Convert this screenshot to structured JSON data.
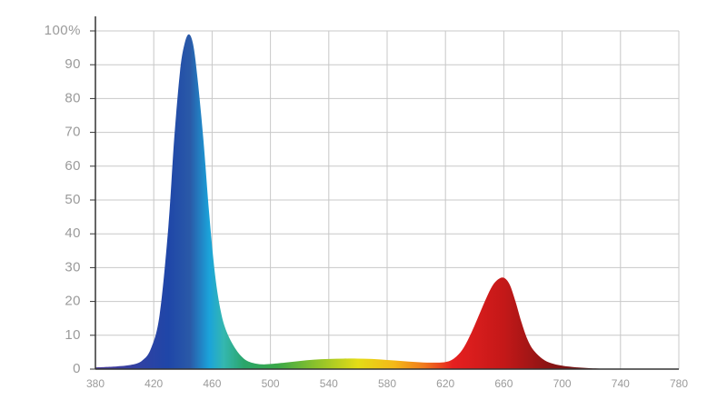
{
  "chart_data": {
    "type": "area",
    "title": "",
    "xlabel": "",
    "ylabel": "",
    "xlim": [
      380,
      780
    ],
    "ylim": [
      0,
      100
    ],
    "grid": true,
    "x_ticks": [
      380,
      420,
      460,
      500,
      540,
      580,
      620,
      660,
      700,
      740,
      780
    ],
    "x_tick_labels": [
      "380",
      "420",
      "460",
      "500",
      "540",
      "580",
      "620",
      "660",
      "700",
      "740",
      "780"
    ],
    "y_ticks": [
      0,
      10,
      20,
      30,
      40,
      50,
      60,
      70,
      80,
      90,
      100
    ],
    "y_tick_labels": [
      "0",
      "10",
      "20",
      "30",
      "40",
      "50",
      "60",
      "70",
      "80",
      "90",
      "100%"
    ],
    "series": [
      {
        "x": [
          380,
          395,
          405,
          412,
          418,
          424,
          430,
          434,
          438,
          441,
          444,
          447,
          450,
          454,
          458,
          462,
          466,
          470,
          476,
          482,
          488,
          494,
          500,
          510,
          520,
          530,
          540,
          550,
          560,
          570,
          580,
          590,
          600,
          610,
          620,
          626,
          632,
          638,
          644,
          648,
          652,
          656,
          660,
          664,
          668,
          672,
          676,
          680,
          686,
          692,
          700,
          710,
          720,
          730
        ],
        "y": [
          0.5,
          0.8,
          1.3,
          2.5,
          6,
          16,
          42,
          68,
          88,
          96,
          99,
          96,
          86,
          68,
          46,
          28,
          17,
          11,
          6,
          3,
          1.8,
          1.4,
          1.5,
          1.9,
          2.4,
          2.8,
          3.0,
          3.1,
          3.1,
          3.0,
          2.7,
          2.4,
          2.1,
          1.9,
          2.1,
          3.2,
          6,
          11,
          17,
          21,
          24.5,
          26.5,
          27,
          25,
          20,
          14,
          9,
          5.8,
          3.2,
          1.8,
          1.0,
          0.5,
          0.25,
          0.1
        ]
      }
    ],
    "gradient_stops": [
      {
        "wavelength": 380,
        "color": "#4a3a9a"
      },
      {
        "wavelength": 430,
        "color": "#1f46a8"
      },
      {
        "wavelength": 445,
        "color": "#2a5aa8"
      },
      {
        "wavelength": 458,
        "color": "#1ba3da"
      },
      {
        "wavelength": 468,
        "color": "#34b7b0"
      },
      {
        "wavelength": 482,
        "color": "#2aa56a"
      },
      {
        "wavelength": 505,
        "color": "#3aa848"
      },
      {
        "wavelength": 530,
        "color": "#88c02c"
      },
      {
        "wavelength": 560,
        "color": "#e4dc16"
      },
      {
        "wavelength": 585,
        "color": "#f4b818"
      },
      {
        "wavelength": 605,
        "color": "#f07a1c"
      },
      {
        "wavelength": 625,
        "color": "#e62020"
      },
      {
        "wavelength": 660,
        "color": "#c41818"
      },
      {
        "wavelength": 690,
        "color": "#8c1414"
      },
      {
        "wavelength": 730,
        "color": "#5a1010"
      }
    ]
  }
}
